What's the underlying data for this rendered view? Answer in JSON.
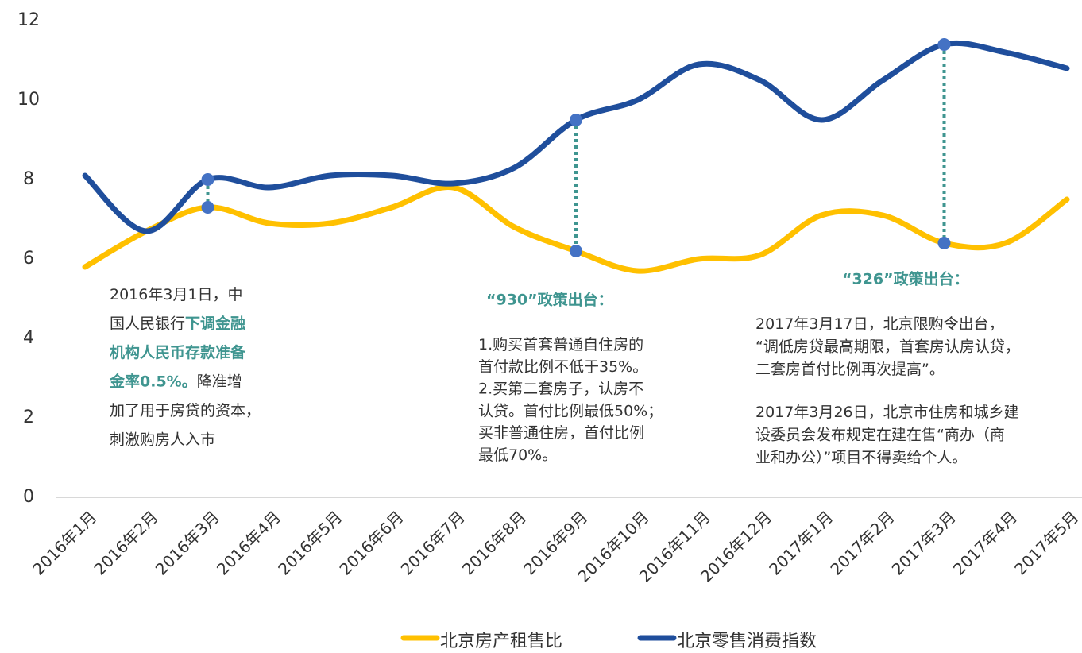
{
  "chart_data": {
    "type": "line",
    "categories": [
      "2016年1月",
      "2016年2月",
      "2016年3月",
      "2016年4月",
      "2016年5月",
      "2016年6月",
      "2016年7月",
      "2016年8月",
      "2016年9月",
      "2016年10月",
      "2016年11月",
      "2016年12月",
      "2017年1月",
      "2017年2月",
      "2017年3月",
      "2017年4月",
      "2017年5月"
    ],
    "series": [
      {
        "name": "北京房产租售比",
        "color": "#ffc000",
        "values": [
          5.8,
          6.7,
          7.3,
          6.9,
          6.9,
          7.3,
          7.8,
          6.8,
          6.2,
          5.7,
          6.0,
          6.1,
          7.1,
          7.1,
          6.4,
          6.4,
          7.5
        ]
      },
      {
        "name": "北京零售消费指数",
        "color": "#1f4e9c",
        "values": [
          8.1,
          6.7,
          8.0,
          7.8,
          8.1,
          8.1,
          7.9,
          8.3,
          9.5,
          10.0,
          10.9,
          10.5,
          9.5,
          10.5,
          11.4,
          11.2,
          10.8
        ]
      }
    ],
    "highlight_categories": [
      "2016年3月",
      "2016年9月",
      "2017年3月"
    ],
    "highlight_color": "#4472c4",
    "ylim": [
      0,
      12
    ],
    "yticks": [
      0,
      2,
      4,
      6,
      8,
      10,
      12
    ],
    "grid": false,
    "legend": "bottom",
    "annotations": [
      {
        "paragraphs": [
          [
            [
              "2016年3月1日，中"
            ],
            [
              "国人民银行",
              {
                "strong": "下调金融"
              }
            ],
            [
              {
                "strong": "机构人民币存款准备"
              }
            ],
            [
              {
                "strong": "金率0.5%。"
              },
              "降准增"
            ],
            [
              "加了用于房贷的资本，"
            ],
            [
              "刺激购房人入市"
            ]
          ]
        ]
      },
      {
        "title": "“930”政策出台：",
        "paragraphs": [
          [
            [
              "1.购买首套普通自住房的"
            ],
            [
              "首付款比例不低于35%。"
            ],
            [
              "2.买第二套房子，认房不"
            ],
            [
              "认贷。首付比例最低50%；"
            ],
            [
              "买非普通住房，首付比例"
            ],
            [
              "最低70%。"
            ]
          ]
        ]
      },
      {
        "title": "“326”政策出台：",
        "paragraphs": [
          [
            [
              "2017年3月17日，北京限购令出台，"
            ],
            [
              "“调低房贷最高期限，首套房认房认贷，"
            ],
            [
              "二套房首付比例再次提高”。"
            ]
          ],
          [
            [
              "2017年3月26日，北京市住房和城乡建"
            ],
            [
              "设委员会发布规定在建在售“商办（商"
            ],
            [
              "业和办公）”项目不得卖给个人。"
            ]
          ]
        ]
      }
    ]
  }
}
